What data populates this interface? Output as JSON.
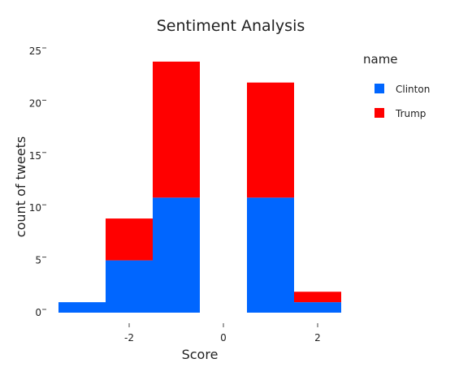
{
  "chart_data": {
    "type": "bar",
    "stacked": true,
    "title": "Sentiment Analysis",
    "xlabel": "Score",
    "ylabel": "count of tweets",
    "x_bins": [
      -3,
      -2,
      -1,
      0,
      1,
      2
    ],
    "bin_width": 1,
    "xlim": [
      -3.5,
      2.5
    ],
    "ylim": [
      0,
      25
    ],
    "x_ticks": [
      -2,
      0,
      2
    ],
    "y_ticks": [
      0,
      5,
      10,
      15,
      20,
      25
    ],
    "grid": false,
    "legend": {
      "title": "name",
      "position": "top-right"
    },
    "series": [
      {
        "name": "Clinton",
        "color": "#0066ff",
        "values": [
          1,
          5,
          11,
          0,
          11,
          1
        ]
      },
      {
        "name": "Trump",
        "color": "#ff0000",
        "values": [
          0,
          4,
          13,
          0,
          11,
          1
        ]
      }
    ]
  }
}
